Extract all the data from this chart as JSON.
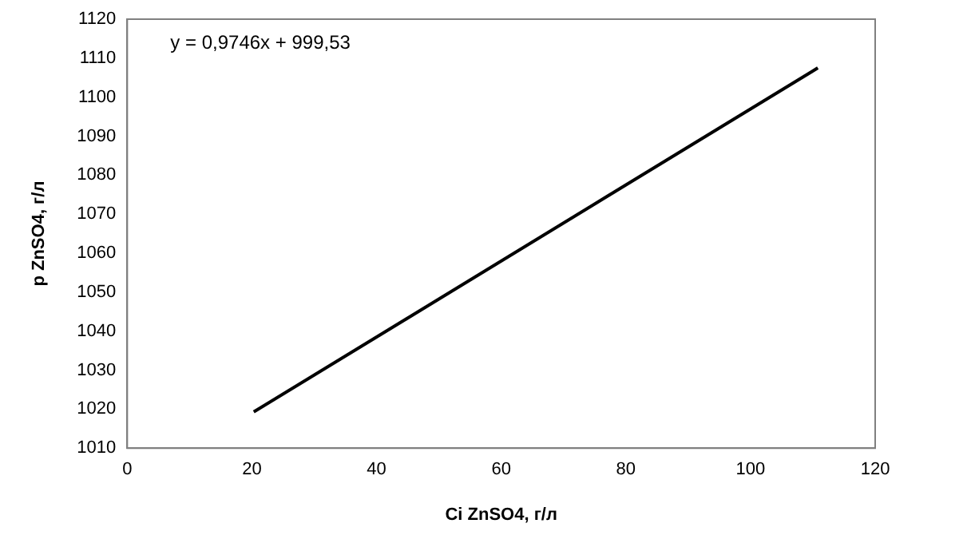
{
  "chart_data": {
    "type": "line",
    "xlabel": "Ci ZnSO4, г/л",
    "ylabel": "p ZnSO4, г/л",
    "annotations": [
      "y = 0,9746x + 999,53"
    ],
    "series": [
      {
        "color": "#000000",
        "x": [
          20.3,
          110.8
        ],
        "values": [
          1019.3,
          1107.5
        ]
      }
    ],
    "xlim": [
      0,
      120
    ],
    "xticks": [
      0,
      20,
      40,
      60,
      80,
      100,
      120
    ],
    "ylim": [
      1010,
      1120
    ],
    "yticks": [
      1010,
      1020,
      1030,
      1040,
      1050,
      1060,
      1070,
      1080,
      1090,
      1100,
      1110,
      1120
    ],
    "grid": false,
    "legend": false,
    "marker": "none",
    "line_style": "solid"
  }
}
